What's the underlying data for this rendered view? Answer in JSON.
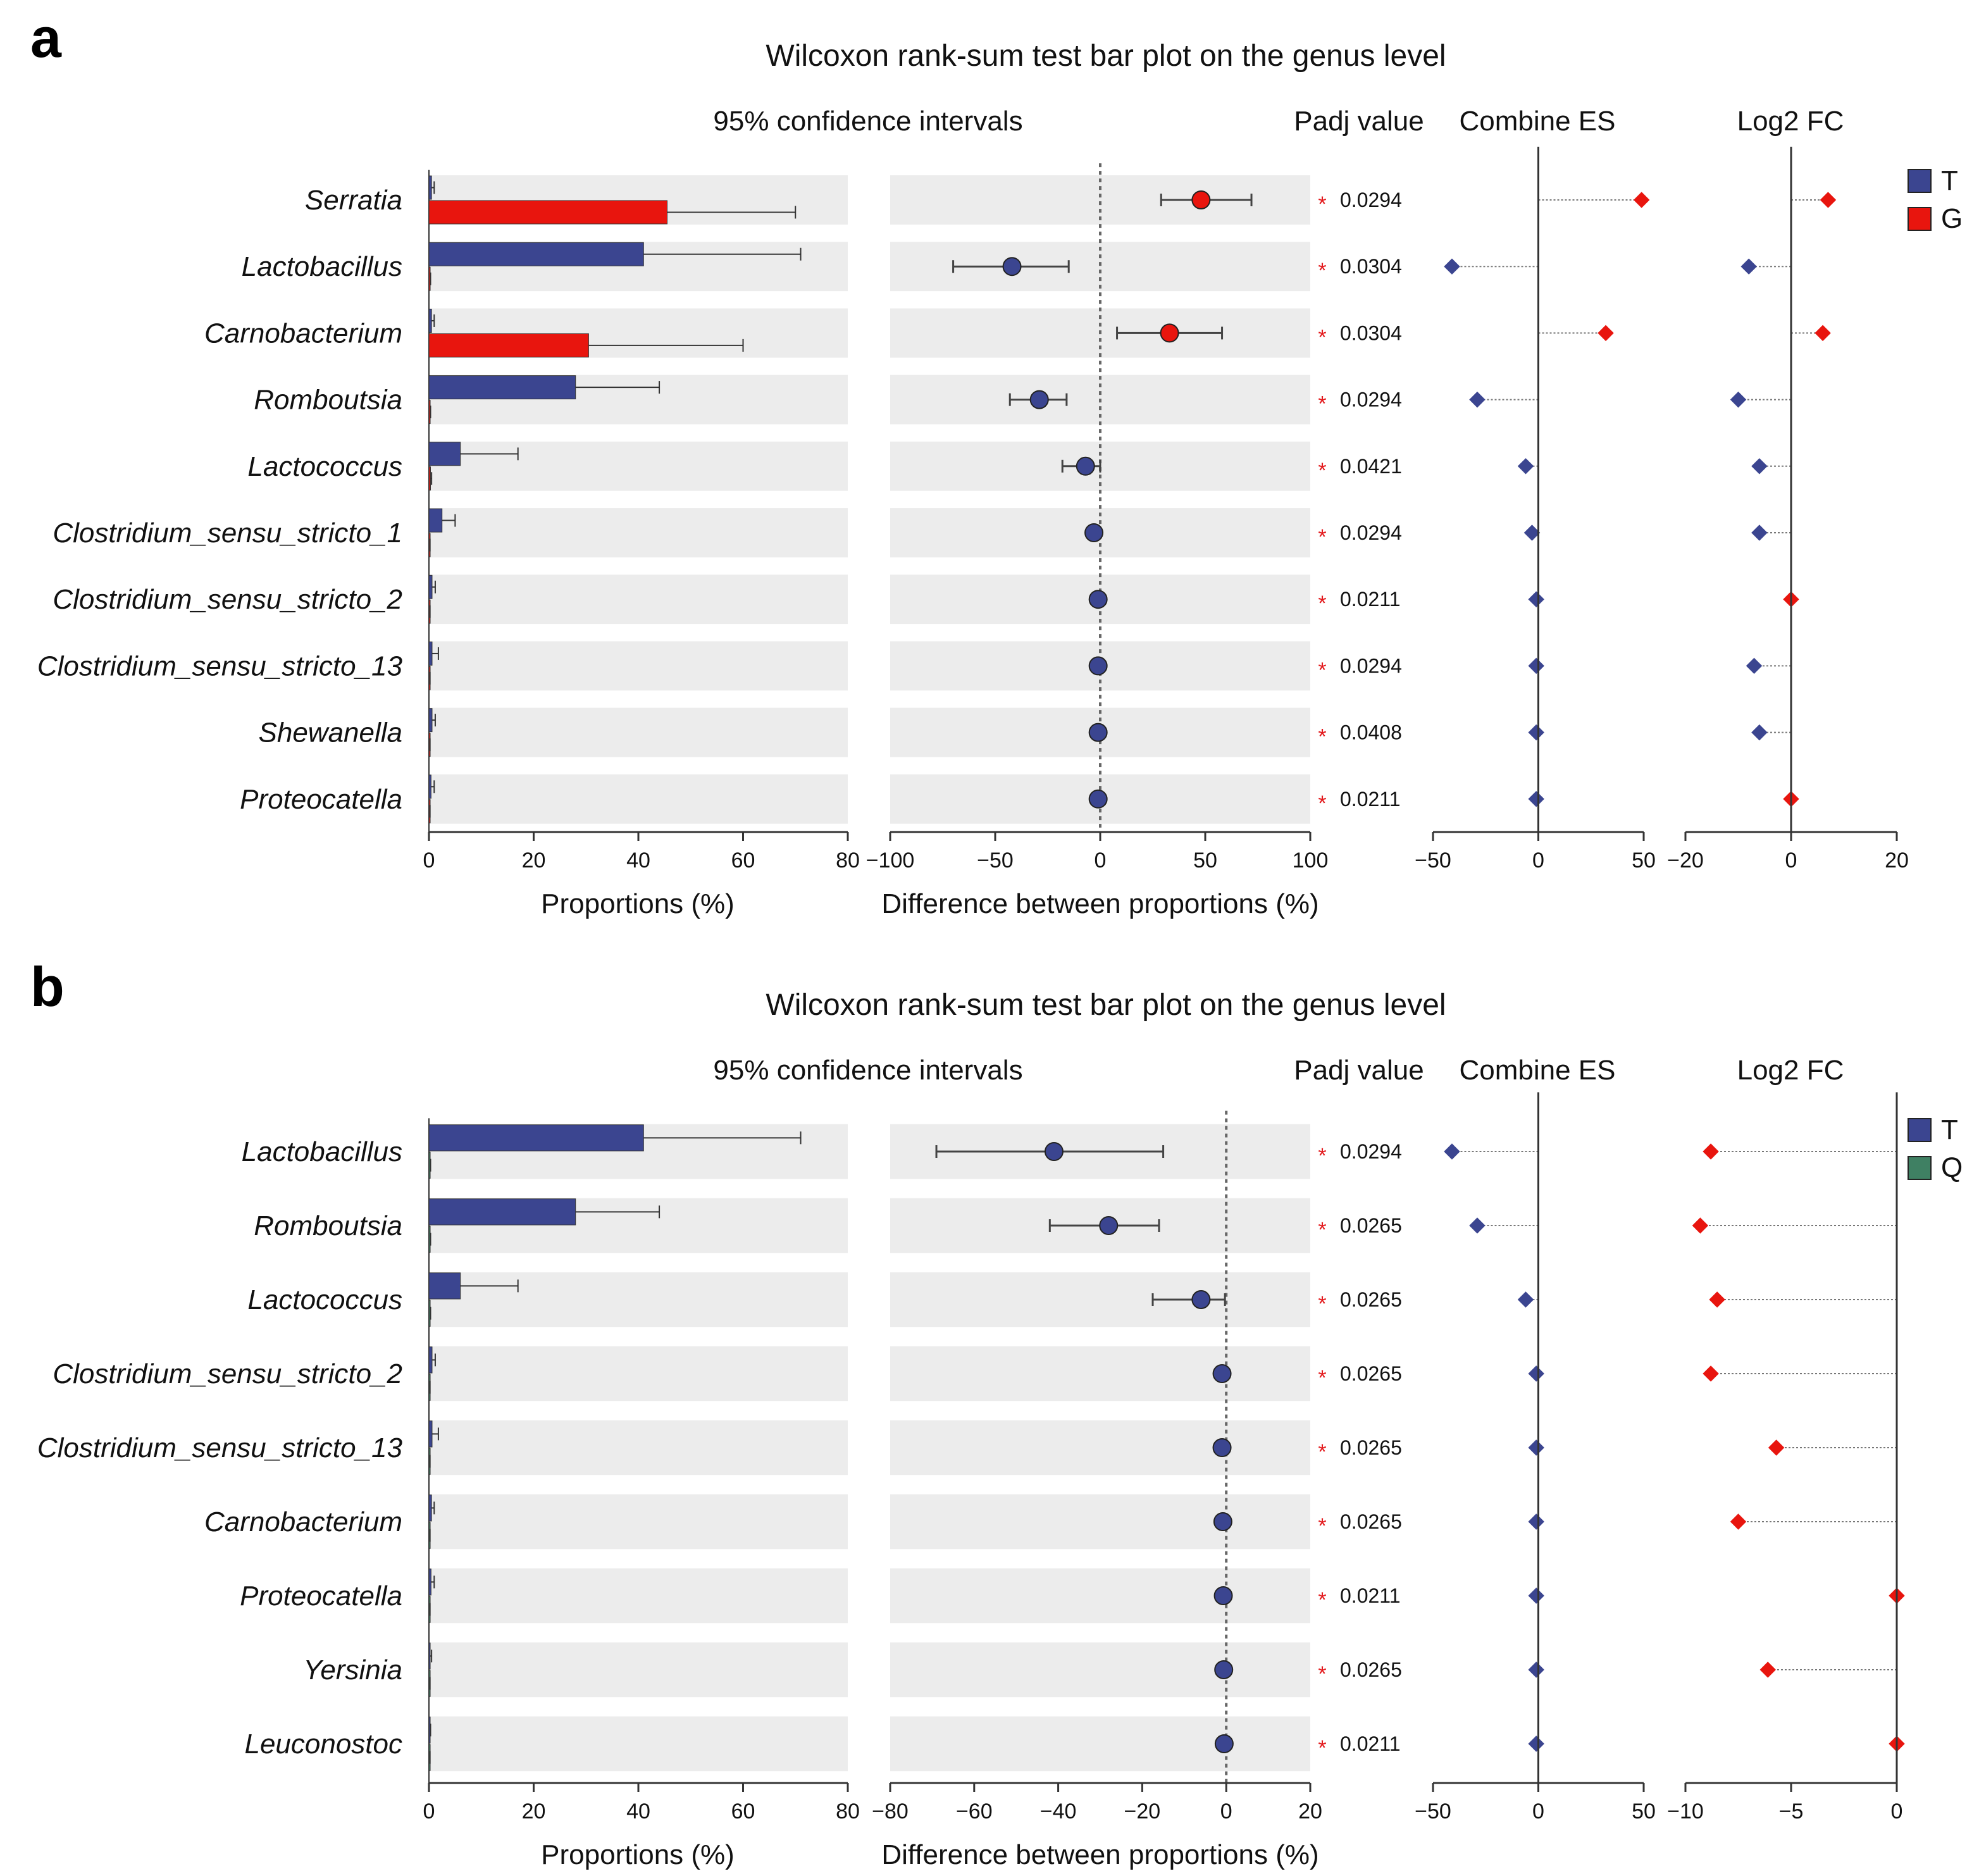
{
  "chart_data": [
    {
      "panel": "a",
      "type": "bar",
      "title": "Wilcoxon rank-sum test bar plot on the genus level",
      "ci_label": "95% confidence intervals",
      "padj_header": "Padj value",
      "es_header": "Combine ES",
      "fc_header": "Log2 FC",
      "groups": [
        {
          "name": "T",
          "color": "#3b4590"
        },
        {
          "name": "G",
          "color": "#e8150e"
        }
      ],
      "categories": [
        "Serratia",
        "Lactobacillus",
        "Carnobacterium",
        "Romboutsia",
        "Lactococcus",
        "Clostridium_sensu_stricto_1",
        "Clostridium_sensu_stricto_2",
        "Clostridium_sensu_stricto_13",
        "Shewanella",
        "Proteocatella"
      ],
      "proportions": {
        "xlabel": "Proportions (%)",
        "xlim": [
          0,
          80
        ],
        "ticks": [
          0,
          20,
          40,
          60,
          80
        ],
        "series": [
          {
            "name": "T",
            "values": [
              0.5,
              41,
              0.5,
              28,
              6,
              2.5,
              0.6,
              0.6,
              0.6,
              0.4
            ],
            "err_high": [
              1,
              71,
              1,
              44,
              17,
              5,
              1.2,
              1.8,
              1.2,
              1
            ]
          },
          {
            "name": "G",
            "values": [
              45.5,
              0.2,
              30.5,
              0.2,
              0.3,
              0.1,
              0.1,
              0.1,
              0.1,
              0.1
            ],
            "err_high": [
              70,
              0.3,
              60,
              0.3,
              0.5,
              0.2,
              0.2,
              0.2,
              0.2,
              0.2
            ]
          }
        ]
      },
      "difference": {
        "xlabel": "Difference between proportions (%)",
        "xlim": [
          -100,
          100
        ],
        "ticks": [
          -100,
          -50,
          0,
          50,
          100
        ],
        "values": [
          48,
          -42,
          33,
          -29,
          -7,
          -3,
          -1,
          -1,
          -1,
          -1
        ],
        "ci_low": [
          29,
          -70,
          8,
          -43,
          -18,
          -3,
          -1,
          -1,
          -1,
          -1
        ],
        "ci_high": [
          72,
          -15,
          58,
          -16,
          0,
          -3,
          -1,
          -1,
          -1,
          -1
        ],
        "color_group": [
          "G",
          "T",
          "G",
          "T",
          "T",
          "T",
          "T",
          "T",
          "T",
          "T"
        ]
      },
      "padj": [
        "0.0294",
        "0.0304",
        "0.0304",
        "0.0294",
        "0.0421",
        "0.0294",
        "0.0211",
        "0.0294",
        "0.0408",
        "0.0211"
      ],
      "significance": "*",
      "combine_es": {
        "xlim": [
          -50,
          50
        ],
        "ticks": [
          -50,
          0,
          50
        ],
        "values": [
          49,
          -41,
          32,
          -29,
          -6,
          -3,
          -1,
          -1,
          -1,
          -1
        ],
        "color_group": [
          "G",
          "T",
          "G",
          "T",
          "T",
          "T",
          "T",
          "T",
          "T",
          "T"
        ]
      },
      "log2fc": {
        "xlim": [
          -20,
          20
        ],
        "ticks": [
          -20,
          0,
          20
        ],
        "values": [
          7,
          -8,
          6,
          -10,
          -6,
          -6,
          0,
          -7,
          -6,
          0
        ],
        "color_group": [
          "G",
          "T",
          "G",
          "T",
          "T",
          "T",
          "G",
          "T",
          "T",
          "G"
        ]
      }
    },
    {
      "panel": "b",
      "type": "bar",
      "title": "Wilcoxon rank-sum test bar plot on the genus level",
      "ci_label": "95% confidence intervals",
      "padj_header": "Padj value",
      "es_header": "Combine ES",
      "fc_header": "Log2 FC",
      "groups": [
        {
          "name": "T",
          "color": "#3b4590"
        },
        {
          "name": "Q",
          "color": "#3f8063"
        }
      ],
      "categories": [
        "Lactobacillus",
        "Romboutsia",
        "Lactococcus",
        "Clostridium_sensu_stricto_2",
        "Clostridium_sensu_stricto_13",
        "Carnobacterium",
        "Proteocatella",
        "Yersinia",
        "Leuconostoc"
      ],
      "proportions": {
        "xlabel": "Proportions (%)",
        "xlim": [
          0,
          80
        ],
        "ticks": [
          0,
          20,
          40,
          60,
          80
        ],
        "series": [
          {
            "name": "T",
            "values": [
              41,
              28,
              6,
              0.6,
              0.6,
              0.5,
              0.4,
              0.2,
              0.2
            ],
            "err_high": [
              71,
              44,
              17,
              1.2,
              1.8,
              1,
              1,
              0.5,
              0.3
            ]
          },
          {
            "name": "Q",
            "values": [
              0.2,
              0.2,
              0.2,
              0.1,
              0.1,
              0.1,
              0.1,
              0.1,
              0.1
            ],
            "err_high": [
              0.3,
              0.3,
              0.3,
              0.2,
              0.2,
              0.2,
              0.2,
              0.2,
              0.2
            ]
          }
        ]
      },
      "difference": {
        "xlabel": "Difference between proportions (%)",
        "xlim": [
          -80,
          20
        ],
        "ticks": [
          -80,
          -60,
          -40,
          -20,
          0,
          20
        ],
        "values": [
          -41,
          -28,
          -6,
          -1,
          -1,
          -0.8,
          -0.7,
          -0.6,
          -0.5
        ],
        "ci_low": [
          -69,
          -42,
          -17.5,
          -1,
          -1,
          -0.8,
          -0.7,
          -0.6,
          -0.5
        ],
        "ci_high": [
          -15,
          -16,
          -0.3,
          -1,
          -1,
          -0.8,
          -0.7,
          -0.6,
          -0.5
        ],
        "color_group": [
          "T",
          "T",
          "T",
          "T",
          "T",
          "T",
          "T",
          "T",
          "T"
        ]
      },
      "padj": [
        "0.0294",
        "0.0265",
        "0.0265",
        "0.0265",
        "0.0265",
        "0.0265",
        "0.0211",
        "0.0265",
        "0.0211"
      ],
      "significance": "*",
      "combine_es": {
        "xlim": [
          -50,
          50
        ],
        "ticks": [
          -50,
          0,
          50
        ],
        "values": [
          -41,
          -29,
          -6,
          -1,
          -1,
          -1,
          -1,
          -1,
          -1
        ],
        "color_group": [
          "T",
          "T",
          "T",
          "T",
          "T",
          "T",
          "T",
          "T",
          "T"
        ]
      },
      "log2fc": {
        "xlim": [
          -10,
          0
        ],
        "ticks": [
          -10,
          -5,
          0
        ],
        "values": [
          -8.8,
          -9.3,
          -8.5,
          -8.8,
          -5.7,
          -7.5,
          0,
          -6.1,
          0
        ],
        "color_group": [
          "G",
          "G",
          "G",
          "G",
          "G",
          "G",
          "G",
          "G",
          "G"
        ]
      }
    }
  ]
}
